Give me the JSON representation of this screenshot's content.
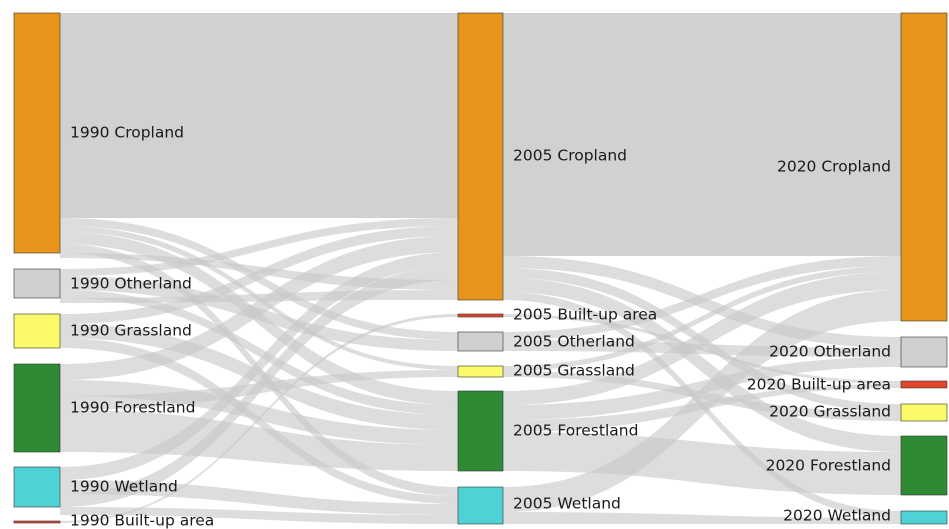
{
  "colors": {
    "Cropland": "#e8931a",
    "Otherland": "#d0d0d0",
    "Grassland": "#fbfb6a",
    "Forestland": "#2e8a35",
    "Wetland": "#4fd2d6",
    "Built-up area": "#e0472a",
    "link": "#c8c8c8"
  },
  "columns": [
    {
      "year": "1990",
      "nodes": [
        {
          "id": "c1990_crop",
          "label": "1990 Cropland",
          "category": "Cropland"
        },
        {
          "id": "c1990_other",
          "label": "1990 Otherland",
          "category": "Otherland"
        },
        {
          "id": "c1990_grass",
          "label": "1990 Grassland",
          "category": "Grassland"
        },
        {
          "id": "c1990_forest",
          "label": "1990 Forestland",
          "category": "Forestland"
        },
        {
          "id": "c1990_wet",
          "label": "1990 Wetland",
          "category": "Wetland"
        },
        {
          "id": "c1990_built",
          "label": "1990 Built-up area",
          "category": "Built-up area"
        }
      ]
    },
    {
      "year": "2005",
      "nodes": [
        {
          "id": "c2005_crop",
          "label": "2005 Cropland",
          "category": "Cropland"
        },
        {
          "id": "c2005_built",
          "label": "2005 Built-up area",
          "category": "Built-up area"
        },
        {
          "id": "c2005_other",
          "label": "2005 Otherland",
          "category": "Otherland"
        },
        {
          "id": "c2005_grass",
          "label": "2005 Grassland",
          "category": "Grassland"
        },
        {
          "id": "c2005_forest",
          "label": "2005 Forestland",
          "category": "Forestland"
        },
        {
          "id": "c2005_wet",
          "label": "2005 Wetland",
          "category": "Wetland"
        }
      ]
    },
    {
      "year": "2020",
      "nodes": [
        {
          "id": "c2020_crop",
          "label": "2020 Cropland",
          "category": "Cropland"
        },
        {
          "id": "c2020_other",
          "label": "2020 Otherland",
          "category": "Otherland"
        },
        {
          "id": "c2020_built",
          "label": "2020 Built-up area",
          "category": "Built-up area"
        },
        {
          "id": "c2020_grass",
          "label": "2020 Grassland",
          "category": "Grassland"
        },
        {
          "id": "c2020_forest",
          "label": "2020 Forestland",
          "category": "Forestland"
        },
        {
          "id": "c2020_wet",
          "label": "2020 Wetland",
          "category": "Wetland"
        }
      ]
    }
  ]
}
